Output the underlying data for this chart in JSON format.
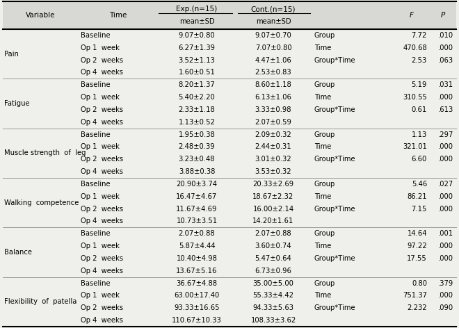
{
  "sections": [
    {
      "variable": "Pain",
      "rows": [
        {
          "time": "Baseline",
          "exp": "9.07±0.80",
          "cont": "9.07±0.70",
          "stat": "Group",
          "F": "7.72",
          "P": ".010"
        },
        {
          "time": "Op 1  week",
          "exp": "6.27±1.39",
          "cont": "7.07±0.80",
          "stat": "Time",
          "F": "470.68",
          "P": ".000"
        },
        {
          "time": "Op 2  weeks",
          "exp": "3.52±1.13",
          "cont": "4.47±1.06",
          "stat": "Group*Time",
          "F": "2.53",
          "P": ".063"
        },
        {
          "time": "Op 4  weeks",
          "exp": "1.60±0.51",
          "cont": "2.53±0.83",
          "stat": "",
          "F": "",
          "P": ""
        }
      ]
    },
    {
      "variable": "Fatigue",
      "rows": [
        {
          "time": "Baseline",
          "exp": "8.20±1.37",
          "cont": "8.60±1.18",
          "stat": "Group",
          "F": "5.19",
          "P": ".031"
        },
        {
          "time": "Op 1  week",
          "exp": "5.40±2.20",
          "cont": "6.13±1.06",
          "stat": "Time",
          "F": "310.55",
          "P": ".000"
        },
        {
          "time": "Op 2  weeks",
          "exp": "2.33±1.18",
          "cont": "3.33±0.98",
          "stat": "Group*Time",
          "F": "0.61",
          "P": ".613"
        },
        {
          "time": "Op 4  weeks",
          "exp": "1.13±0.52",
          "cont": "2.07±0.59",
          "stat": "",
          "F": "",
          "P": ""
        }
      ]
    },
    {
      "variable": "Muscle strength  of  leg",
      "rows": [
        {
          "time": "Baseline",
          "exp": "1.95±0.38",
          "cont": "2.09±0.32",
          "stat": "Group",
          "F": "1.13",
          "P": ".297"
        },
        {
          "time": "Op 1  week",
          "exp": "2.48±0.39",
          "cont": "2.44±0.31",
          "stat": "Time",
          "F": "321.01",
          "P": ".000"
        },
        {
          "time": "Op 2  weeks",
          "exp": "3.23±0.48",
          "cont": "3.01±0.32",
          "stat": "Group*Time",
          "F": "6.60",
          "P": ".000"
        },
        {
          "time": "Op 4  weeks",
          "exp": "3.88±0.38",
          "cont": "3.53±0.32",
          "stat": "",
          "F": "",
          "P": ""
        }
      ]
    },
    {
      "variable": "Walking  competence",
      "rows": [
        {
          "time": "Baseline",
          "exp": "20.90±3.74",
          "cont": "20.33±2.69",
          "stat": "Group",
          "F": "5.46",
          "P": ".027"
        },
        {
          "time": "Op 1  week",
          "exp": "16.47±4.67",
          "cont": "18.67±2.32",
          "stat": "Time",
          "F": "86.21",
          "P": ".000"
        },
        {
          "time": "Op 2  weeks",
          "exp": "11.67±4.69",
          "cont": "16.00±2.14",
          "stat": "Group*Time",
          "F": "7.15",
          "P": ".000"
        },
        {
          "time": "Op 4  weeks",
          "exp": "10.73±3.51",
          "cont": "14.20±1.61",
          "stat": "",
          "F": "",
          "P": ""
        }
      ]
    },
    {
      "variable": "Balance",
      "rows": [
        {
          "time": "Baseline",
          "exp": "2.07±0.88",
          "cont": "2.07±0.88",
          "stat": "Group",
          "F": "14.64",
          "P": ".001"
        },
        {
          "time": "Op 1  week",
          "exp": "5.87±4.44",
          "cont": "3.60±0.74",
          "stat": "Time",
          "F": "97.22",
          "P": ".000"
        },
        {
          "time": "Op 2  weeks",
          "exp": "10.40±4.98",
          "cont": "5.47±0.64",
          "stat": "Group*Time",
          "F": "17.55",
          "P": ".000"
        },
        {
          "time": "Op 4  weeks",
          "exp": "13.67±5.16",
          "cont": "6.73±0.96",
          "stat": "",
          "F": "",
          "P": ""
        }
      ]
    },
    {
      "variable": "Flexibility  of  patella",
      "rows": [
        {
          "time": "Baseline",
          "exp": "36.67±4.88",
          "cont": "35.00±5.00",
          "stat": "Group",
          "F": "0.80",
          "P": ".379"
        },
        {
          "time": "Op 1  week",
          "exp": "63.00±17.40",
          "cont": "55.33±4.42",
          "stat": "Time",
          "F": "751.37",
          "P": ".000"
        },
        {
          "time": "Op 2  weeks",
          "exp": "93.33±16.65",
          "cont": "94.33±5.63",
          "stat": "Group*Time",
          "F": "2.232",
          "P": ".090"
        },
        {
          "time": "Op 4  weeks",
          "exp": "110.67±10.33",
          "cont": "108.33±3.62",
          "stat": "",
          "F": "",
          "P": ""
        }
      ]
    }
  ],
  "bg_color": "#efefeb",
  "header_bg": "#d8d8d4",
  "font_size": 7.2,
  "header_font_size": 7.5
}
